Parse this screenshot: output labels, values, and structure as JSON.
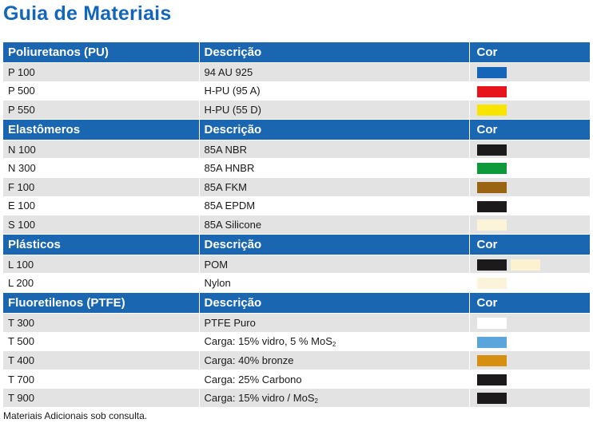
{
  "title": "Guia de Materiais",
  "sections": [
    {
      "header": [
        "Poliuretanos (PU)",
        "Descrição",
        "Cor"
      ],
      "rows": [
        {
          "code": "P 100",
          "desc": "94 AU 925",
          "colors": [
            "#1566b8"
          ]
        },
        {
          "code": "P 500",
          "desc": "H-PU (95 A)",
          "colors": [
            "#e8141b"
          ]
        },
        {
          "code": "P 550",
          "desc": "H-PU (55 D)",
          "colors": [
            "#f7e400"
          ]
        }
      ]
    },
    {
      "header": [
        "Elastômeros",
        "Descrição",
        "Cor"
      ],
      "rows": [
        {
          "code": "N 100",
          "desc": "85A NBR",
          "colors": [
            "#1c1a1a"
          ]
        },
        {
          "code": "N 300",
          "desc": "85A HNBR",
          "colors": [
            "#0e9a3a"
          ]
        },
        {
          "code": "F 100",
          "desc": "85A FKM",
          "colors": [
            "#9a6412"
          ]
        },
        {
          "code": "E 100",
          "desc": "85A EPDM",
          "colors": [
            "#1c1a1a"
          ]
        },
        {
          "code": "S 100",
          "desc": "85A Silicone",
          "colors": [
            "#fcf4d8"
          ]
        }
      ]
    },
    {
      "header": [
        "Plásticos",
        "Descrição",
        "Cor"
      ],
      "rows": [
        {
          "code": "L 100",
          "desc": "POM",
          "colors": [
            "#1c1a1a",
            "#fcf2d0"
          ]
        },
        {
          "code": "L 200",
          "desc": "Nylon",
          "colors": [
            "#fcf4da"
          ]
        }
      ]
    },
    {
      "header": [
        "Fluoretilenos (PTFE)",
        "Descrição",
        "Cor"
      ],
      "rows": [
        {
          "code": "T 300",
          "desc": "PTFE Puro",
          "colors": [
            "#ffffff"
          ]
        },
        {
          "code": "T 500",
          "desc": "Carga: 15% vidro, 5 % MoS",
          "sub": "2",
          "colors": [
            "#5aa6dc"
          ]
        },
        {
          "code": "T 400",
          "desc": "Carga: 40% bronze",
          "colors": [
            "#d68f10"
          ]
        },
        {
          "code": "T 700",
          "desc": "Carga: 25% Carbono",
          "colors": [
            "#1c1a1a"
          ]
        },
        {
          "code": "T 900",
          "desc": "Carga: 15% vidro / MoS",
          "sub": "2",
          "colors": [
            "#1c1a1a"
          ]
        }
      ]
    }
  ],
  "footnote": "Materiais Adicionais sob consulta."
}
